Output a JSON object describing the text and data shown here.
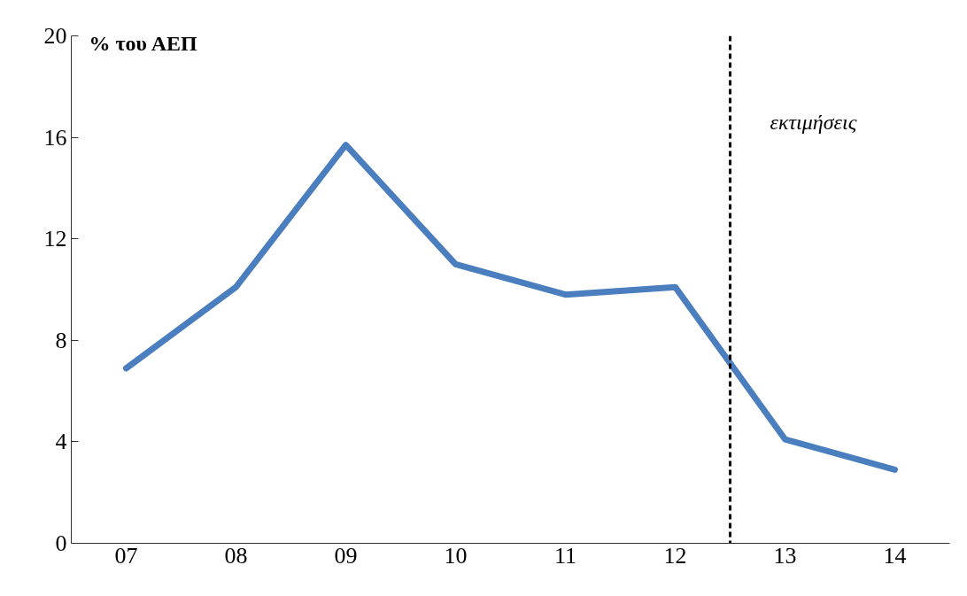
{
  "chart_data": {
    "type": "line",
    "ylabel": "% του ΑΕΠ",
    "x": [
      2007,
      2008,
      2009,
      2010,
      2011,
      2012,
      2013,
      2014
    ],
    "series": [
      {
        "color": "#4a7ebf",
        "values": [
          6.9,
          10.1,
          15.7,
          11.0,
          9.8,
          10.1,
          4.1,
          2.9
        ]
      }
    ],
    "xlim": [
      2006.5,
      2014.5
    ],
    "xticks": [
      {
        "value": 2007,
        "label": "07"
      },
      {
        "value": 2008,
        "label": "08"
      },
      {
        "value": 2009,
        "label": "09"
      },
      {
        "value": 2010,
        "label": "10"
      },
      {
        "value": 2011,
        "label": "11"
      },
      {
        "value": 2012,
        "label": "12"
      },
      {
        "value": 2013,
        "label": "13"
      },
      {
        "value": 2014,
        "label": "14"
      }
    ],
    "ylim": [
      0,
      20
    ],
    "yticks": [
      0,
      4,
      8,
      12,
      16,
      20
    ],
    "ref_lines": [
      {
        "axis": "x",
        "value": 2012.5,
        "label": "εκτιμήσεις",
        "color": "#000000",
        "line_style": "dashed"
      }
    ],
    "grid": false,
    "marker": "none",
    "line_style": "solid"
  }
}
